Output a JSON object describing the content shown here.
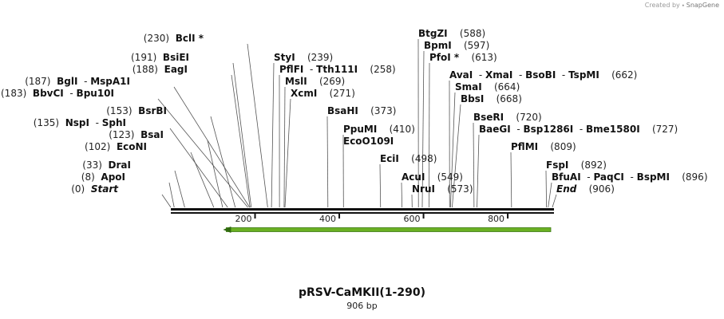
{
  "app": {
    "credit_prefix": "Created by",
    "credit_brand": "SnapGene"
  },
  "map": {
    "title": "pRSV-CaMKII(1-290)",
    "length_label": "906 bp",
    "sequence_length": 906,
    "ticks": [
      "200",
      "400",
      "600",
      "800"
    ],
    "tick_values": [
      200,
      400,
      600,
      800
    ],
    "feature": {
      "direction": "reverse",
      "start": 105,
      "end": 906,
      "color": "#6ab023"
    },
    "labels": [
      {
        "pos_text": "(230)",
        "enzymes": [
          "BclI *"
        ],
        "site": 230
      },
      {
        "pos_text": "(191)",
        "enzymes": [
          "BsiEI"
        ],
        "site": 191
      },
      {
        "pos_text": "(188)",
        "enzymes": [
          "EagI"
        ],
        "site": 188
      },
      {
        "pos_text": "(187)",
        "enzymes": [
          "BglI",
          "MspA1I"
        ],
        "site": 187
      },
      {
        "pos_text": "(183)",
        "enzymes": [
          "BbvCI",
          "Bpu10I"
        ],
        "site": 183
      },
      {
        "pos_text": "(153)",
        "enzymes": [
          "BsrBI"
        ],
        "site": 153
      },
      {
        "pos_text": "(135)",
        "enzymes": [
          "NspI",
          "SphI"
        ],
        "site": 135
      },
      {
        "pos_text": "(123)",
        "enzymes": [
          "BsaI"
        ],
        "site": 123
      },
      {
        "pos_text": "(102)",
        "enzymes": [
          "EcoNI"
        ],
        "site": 102
      },
      {
        "pos_text": "(33)",
        "enzymes": [
          "DraI"
        ],
        "site": 33
      },
      {
        "pos_text": "(8)",
        "enzymes": [
          "ApoI"
        ],
        "site": 8
      },
      {
        "pos_text": "(0)",
        "enzymes": [
          "Start"
        ],
        "site": 0,
        "italic": true
      },
      {
        "enzymes": [
          "StyI"
        ],
        "pos_text": "(239)",
        "site": 239
      },
      {
        "enzymes": [
          "PflFI",
          "Tth111I"
        ],
        "pos_text": "(258)",
        "site": 258
      },
      {
        "enzymes": [
          "MslI"
        ],
        "pos_text": "(269)",
        "site": 269
      },
      {
        "enzymes": [
          "XcmI"
        ],
        "pos_text": "(271)",
        "site": 271
      },
      {
        "enzymes": [
          "BsaHI"
        ],
        "pos_text": "(373)",
        "site": 373
      },
      {
        "enzymes": [
          "PpuMI"
        ],
        "pos_text": "(410)",
        "site": 410
      },
      {
        "enzymes": [
          "EcoO109I"
        ],
        "site": 410
      },
      {
        "enzymes": [
          "EciI"
        ],
        "pos_text": "(498)",
        "site": 498
      },
      {
        "enzymes": [
          "AcuI"
        ],
        "pos_text": "(549)",
        "site": 549
      },
      {
        "enzymes": [
          "NruI"
        ],
        "pos_text": "(573)",
        "site": 573
      },
      {
        "enzymes": [
          "BtgZI"
        ],
        "pos_text": "(588)",
        "site": 588
      },
      {
        "enzymes": [
          "BpmI"
        ],
        "pos_text": "(597)",
        "site": 597
      },
      {
        "enzymes": [
          "PfoI *"
        ],
        "pos_text": "(613)",
        "site": 613
      },
      {
        "enzymes": [
          "AvaI",
          "XmaI",
          "BsoBI",
          "TspMI"
        ],
        "pos_text": "(662)",
        "site": 662
      },
      {
        "enzymes": [
          "SmaI"
        ],
        "pos_text": "(664)",
        "site": 664
      },
      {
        "enzymes": [
          "BbsI"
        ],
        "pos_text": "(668)",
        "site": 668
      },
      {
        "enzymes": [
          "BseRI"
        ],
        "pos_text": "(720)",
        "site": 720
      },
      {
        "enzymes": [
          "BaeGI",
          "Bsp1286I",
          "Bme1580I"
        ],
        "pos_text": "(727)",
        "site": 727
      },
      {
        "enzymes": [
          "PflMI"
        ],
        "pos_text": "(809)",
        "site": 809
      },
      {
        "enzymes": [
          "FspI"
        ],
        "pos_text": "(892)",
        "site": 892
      },
      {
        "enzymes": [
          "BfuAI",
          "PaqCI",
          "BspMI"
        ],
        "pos_text": "(896)",
        "site": 896
      },
      {
        "enzymes": [
          "End"
        ],
        "pos_text": "(906)",
        "site": 906,
        "italic": true
      }
    ]
  }
}
